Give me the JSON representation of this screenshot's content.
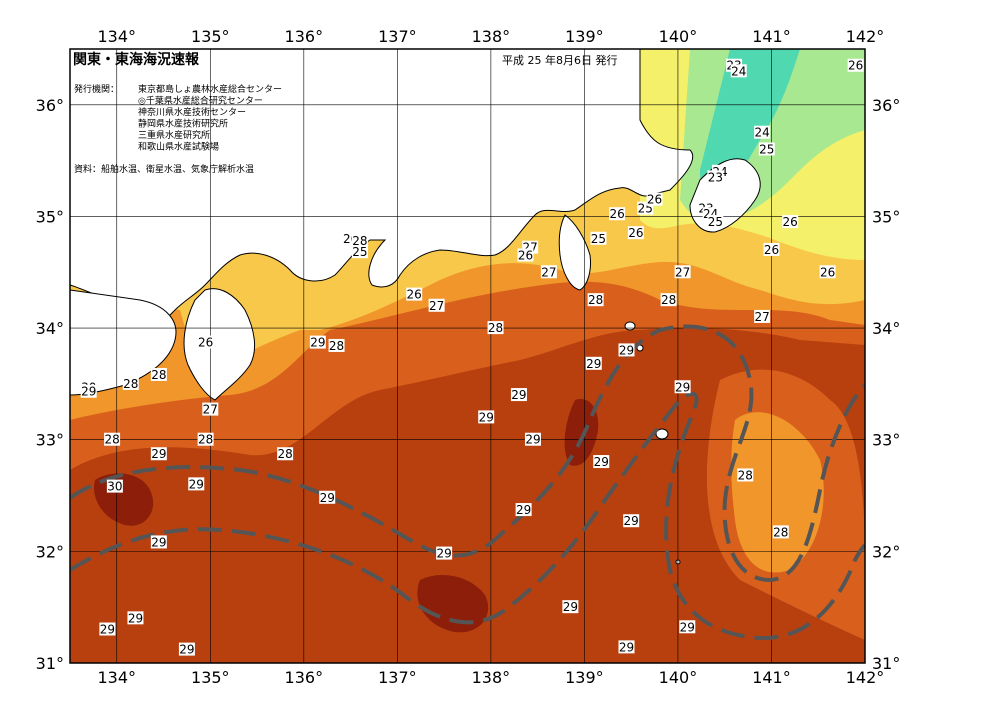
{
  "title": "関東・東海海況速報",
  "issue_date": "平成 25 年8月6日 発行",
  "issuers_label": "発行機関：",
  "issuers": [
    "東京都島しょ農林水産総合センター",
    "◎千葉県水産総合研究センター",
    "神奈川県水産技術センター",
    "静岡県水産技術研究所",
    "三重県水産研究所",
    "和歌山県水産試験場"
  ],
  "sources": "資料：船舶水温、衛星水温、気象庁解析水温",
  "longitude_labels": [
    "134°",
    "135°",
    "136°",
    "137°",
    "138°",
    "139°",
    "140°",
    "141°",
    "142°"
  ],
  "latitude_labels": [
    "36°",
    "35°",
    "34°",
    "33°",
    "32°",
    "31°"
  ],
  "colors": {
    "t30": "#8c1e0a",
    "t29": "#b8400f",
    "t28": "#d9601c",
    "t27": "#f0962a",
    "t26": "#f8c84a",
    "t25": "#f4f06a",
    "t24": "#a8e890",
    "t23": "#50d8b0",
    "land": "#ffffff",
    "kuroshio": "#555555"
  },
  "temperature_labels": [
    {
      "text": "23",
      "lon": 140.6,
      "lat": 36.35
    },
    {
      "text": "24",
      "lon": 140.65,
      "lat": 36.3
    },
    {
      "text": "26",
      "lon": 141.9,
      "lat": 36.35
    },
    {
      "text": "24",
      "lon": 140.9,
      "lat": 35.75
    },
    {
      "text": "25",
      "lon": 140.95,
      "lat": 35.6
    },
    {
      "text": "24",
      "lon": 140.45,
      "lat": 35.4
    },
    {
      "text": "23",
      "lon": 140.4,
      "lat": 35.35
    },
    {
      "text": "23",
      "lon": 140.3,
      "lat": 35.07
    },
    {
      "text": "24",
      "lon": 140.35,
      "lat": 35.02
    },
    {
      "text": "25",
      "lon": 140.4,
      "lat": 34.95
    },
    {
      "text": "26",
      "lon": 141.2,
      "lat": 34.95
    },
    {
      "text": "26",
      "lon": 141.0,
      "lat": 34.7
    },
    {
      "text": "26",
      "lon": 141.6,
      "lat": 34.5
    },
    {
      "text": "26",
      "lon": 139.35,
      "lat": 35.02
    },
    {
      "text": "25",
      "lon": 139.65,
      "lat": 35.07
    },
    {
      "text": "26",
      "lon": 139.75,
      "lat": 35.15
    },
    {
      "text": "25",
      "lon": 139.15,
      "lat": 34.8
    },
    {
      "text": "26",
      "lon": 139.55,
      "lat": 34.85
    },
    {
      "text": "27",
      "lon": 140.05,
      "lat": 34.5
    },
    {
      "text": "27",
      "lon": 140.9,
      "lat": 34.1
    },
    {
      "text": "28",
      "lon": 139.9,
      "lat": 34.25
    },
    {
      "text": "28",
      "lon": 139.12,
      "lat": 34.25
    },
    {
      "text": "27",
      "lon": 138.42,
      "lat": 34.72
    },
    {
      "text": "26",
      "lon": 138.37,
      "lat": 34.65
    },
    {
      "text": "27",
      "lon": 138.62,
      "lat": 34.5
    },
    {
      "text": "26",
      "lon": 136.5,
      "lat": 34.8
    },
    {
      "text": "28",
      "lon": 136.6,
      "lat": 34.78
    },
    {
      "text": "25",
      "lon": 136.6,
      "lat": 34.68
    },
    {
      "text": "26",
      "lon": 137.18,
      "lat": 34.3
    },
    {
      "text": "27",
      "lon": 137.42,
      "lat": 34.2
    },
    {
      "text": "28",
      "lon": 138.05,
      "lat": 34.0
    },
    {
      "text": "26",
      "lon": 134.95,
      "lat": 33.87
    },
    {
      "text": "29",
      "lon": 136.15,
      "lat": 33.87
    },
    {
      "text": "28",
      "lon": 136.35,
      "lat": 33.84
    },
    {
      "text": "29",
      "lon": 139.45,
      "lat": 33.8
    },
    {
      "text": "29",
      "lon": 139.1,
      "lat": 33.68
    },
    {
      "text": "30",
      "lon": 133.7,
      "lat": 33.47
    },
    {
      "text": "29",
      "lon": 133.7,
      "lat": 33.43
    },
    {
      "text": "28",
      "lon": 134.15,
      "lat": 33.5
    },
    {
      "text": "28",
      "lon": 134.45,
      "lat": 33.58
    },
    {
      "text": "29",
      "lon": 138.3,
      "lat": 33.4
    },
    {
      "text": "29",
      "lon": 140.05,
      "lat": 33.47
    },
    {
      "text": "27",
      "lon": 135.0,
      "lat": 33.27
    },
    {
      "text": "29",
      "lon": 137.95,
      "lat": 33.2
    },
    {
      "text": "29",
      "lon": 138.45,
      "lat": 33.0
    },
    {
      "text": "28",
      "lon": 133.95,
      "lat": 33.0
    },
    {
      "text": "28",
      "lon": 134.95,
      "lat": 33.0
    },
    {
      "text": "29",
      "lon": 134.45,
      "lat": 32.87
    },
    {
      "text": "28",
      "lon": 135.8,
      "lat": 32.87
    },
    {
      "text": "29",
      "lon": 139.18,
      "lat": 32.8
    },
    {
      "text": "30",
      "lon": 133.98,
      "lat": 32.58
    },
    {
      "text": "29",
      "lon": 134.85,
      "lat": 32.6
    },
    {
      "text": "29",
      "lon": 136.25,
      "lat": 32.48
    },
    {
      "text": "28",
      "lon": 140.72,
      "lat": 32.68
    },
    {
      "text": "29",
      "lon": 138.35,
      "lat": 32.37
    },
    {
      "text": "29",
      "lon": 139.5,
      "lat": 32.27
    },
    {
      "text": "28",
      "lon": 141.1,
      "lat": 32.17
    },
    {
      "text": "29",
      "lon": 134.45,
      "lat": 32.08
    },
    {
      "text": "29",
      "lon": 137.5,
      "lat": 31.98
    },
    {
      "text": "29",
      "lon": 138.85,
      "lat": 31.5
    },
    {
      "text": "29",
      "lon": 134.2,
      "lat": 31.4
    },
    {
      "text": "29",
      "lon": 133.9,
      "lat": 31.3
    },
    {
      "text": "29",
      "lon": 140.1,
      "lat": 31.32
    },
    {
      "text": "29",
      "lon": 134.75,
      "lat": 31.12
    },
    {
      "text": "29",
      "lon": 139.45,
      "lat": 31.14
    }
  ]
}
